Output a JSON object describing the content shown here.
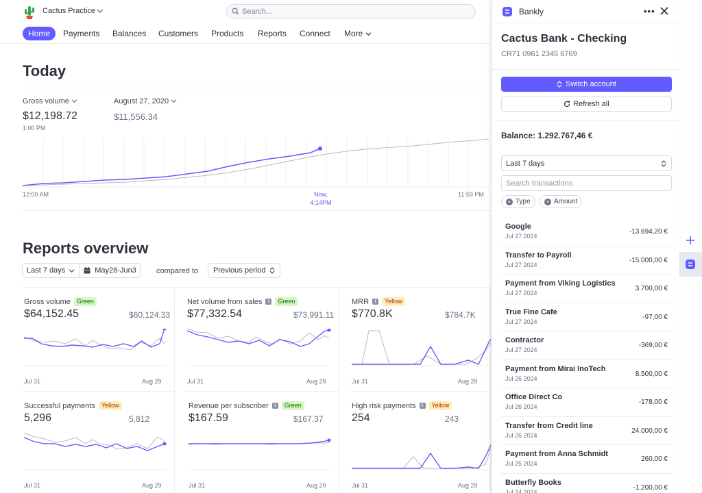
{
  "topbar": {
    "account_name": "Cactus Practice",
    "search_placeholder": "Search..."
  },
  "nav": {
    "items": [
      "Home",
      "Payments",
      "Balances",
      "Customers",
      "Products",
      "Reports",
      "Connect",
      "More"
    ],
    "active": "Home"
  },
  "today": {
    "title": "Today",
    "gross_label": "Gross volume",
    "gross_value": "$12,198.72",
    "gross_time": "1:00 PM",
    "date_label": "August 27, 2020",
    "date_value": "$11,556.34",
    "axis_start": "12:00 AM",
    "axis_now_1": "Now,",
    "axis_now_2": "4:14PM",
    "axis_end": "11:59 PM"
  },
  "reports": {
    "title": "Reports overview",
    "range": "Last 7 days",
    "dates": "May28-Jun3",
    "compared_to": "compared to",
    "comparison": "Previous period",
    "cards": [
      {
        "title": "Gross volume",
        "badge": "Green",
        "badge_color": "green",
        "info": false,
        "value": "$64,152.45",
        "compare": "$60,124.33",
        "start": "Jul 31",
        "end": "Aug 29"
      },
      {
        "title": "Net volume from sales",
        "badge": "Green",
        "badge_color": "green",
        "info": true,
        "value": "$77,332.54",
        "compare": "$73,991.11",
        "start": "Jul 31",
        "end": "Aug 29"
      },
      {
        "title": "MRR",
        "badge": "Yellow",
        "badge_color": "yellow",
        "info": true,
        "value": "$770.8K",
        "compare": "$784.7K",
        "start": "Jul 31",
        "end": "Aug 29"
      },
      {
        "title": "Successful payments",
        "badge": "Yellow",
        "badge_color": "yellow",
        "info": false,
        "value": "5,296",
        "compare": "5,812",
        "start": "Jul 31",
        "end": "Aug 29"
      },
      {
        "title": "Revenue per subscriber",
        "badge": "Green",
        "badge_color": "green",
        "info": true,
        "value": "$167.59",
        "compare": "$167.37",
        "start": "Jul 31",
        "end": "Aug 29"
      },
      {
        "title": "High risk payments",
        "badge": "Yellow",
        "badge_color": "yellow",
        "info": true,
        "value": "254",
        "compare": "243",
        "start": "Jul 31",
        "end": "Aug 29"
      }
    ]
  },
  "bankly": {
    "app_title": "Bankly",
    "account_title": "Cactus Bank - Checking",
    "iban": "CR71 0961 2345 6769",
    "switch_label": "Switch account",
    "refresh_label": "Refresh all",
    "balance": "Balance: 1.292.767,46 €",
    "range": "Last 7 days",
    "search_placeholder": "Search transactions",
    "filter_type": "Type",
    "filter_amount": "Amount",
    "transactions": [
      {
        "name": "Google",
        "date": "Jul 27 2024",
        "amount": "-13.694,20 €"
      },
      {
        "name": "Transfer to Payroll",
        "date": "Jul 27 2024",
        "amount": "-15.000,00 €"
      },
      {
        "name": "Payment from Viking Logistics",
        "date": "Jul 27 2024",
        "amount": "3.700,00 €"
      },
      {
        "name": "True Fine Cafe",
        "date": "Jul 27 2024",
        "amount": "-97,00 €"
      },
      {
        "name": "Contractor",
        "date": "Jul 27 2024",
        "amount": "-369,00 €"
      },
      {
        "name": "Payment from Mirai InoTech",
        "date": "Jul 26 2024",
        "amount": "8.500,00 €"
      },
      {
        "name": "Office Direct Co",
        "date": "Jul 26 2024",
        "amount": "-178,00 €"
      },
      {
        "name": "Transfer from Credit line",
        "date": "Jul 26 2024",
        "amount": "24.000,00 €"
      },
      {
        "name": "Payment from Anna Schmidt",
        "date": "Jul 25 2024",
        "amount": "260,00 €"
      },
      {
        "name": "Butterfly Books",
        "date": "Jul 24 2024",
        "amount": "-1.200,00 €"
      }
    ]
  },
  "colors": {
    "accent": "#635bff",
    "grey_line": "#b5b9c2"
  }
}
